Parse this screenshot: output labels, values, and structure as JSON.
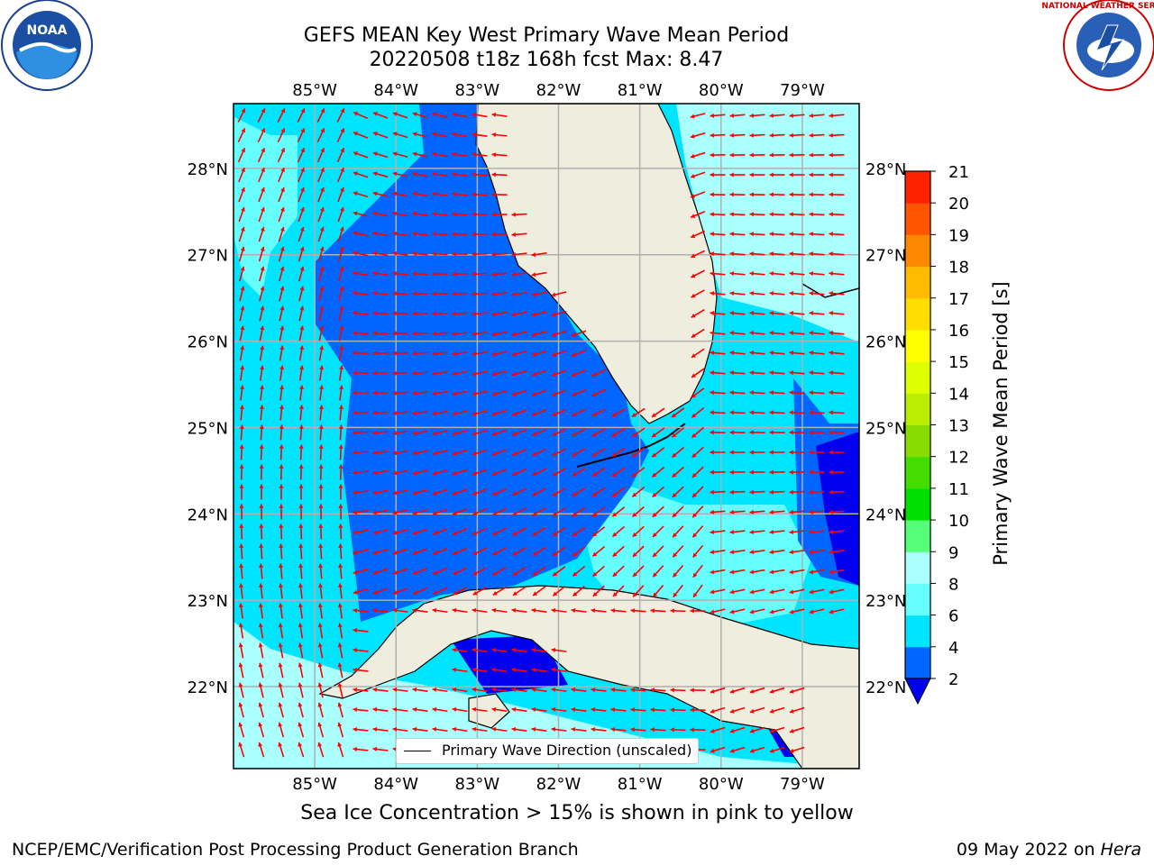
{
  "title_line1": "GEFS MEAN Key West Primary Wave Mean Period",
  "title_line2": "20220508 t18z 168h fcst   Max: 8.47",
  "lon_labels": [
    "85°W",
    "84°W",
    "83°W",
    "82°W",
    "81°W",
    "80°W",
    "79°W"
  ],
  "lat_labels": [
    "28°N",
    "27°N",
    "26°N",
    "25°N",
    "24°N",
    "23°N",
    "22°N"
  ],
  "map_extent": {
    "lon_min": -86.0,
    "lon_max": -78.3,
    "lat_min": 21.05,
    "lat_max": 28.75
  },
  "legend_label": "Primary Wave Direction (unscaled)",
  "colorbar": {
    "label": "Primary Wave Mean Period [s]",
    "ticks": [
      "2",
      "4",
      "6",
      "8",
      "9",
      "10",
      "11",
      "12",
      "13",
      "14",
      "15",
      "16",
      "17",
      "18",
      "19",
      "20",
      "21"
    ],
    "colors": [
      "#0066ff",
      "#00e5ff",
      "#66ffff",
      "#aaffff",
      "#55ff77",
      "#00e000",
      "#44dd00",
      "#88dd00",
      "#bbee00",
      "#ddff00",
      "#ffff00",
      "#ffdd00",
      "#ffbb00",
      "#ff8800",
      "#ff5500",
      "#ff2200"
    ],
    "under_color": "#0000ee"
  },
  "subnote": "Sea Ice Concentration > 15% is shown in pink to yellow",
  "credit_left": "NCEP/EMC/Verification Post Processing Product Generation Branch",
  "credit_date": "09 May 2022 on",
  "credit_machine": "Hera",
  "logos": {
    "left": "NOAA",
    "right": "NATIONAL WEATHER SERVICE"
  },
  "colors": {
    "land": "#efeddd",
    "arrows": "#ff0000",
    "grid": "#b0b0b0"
  }
}
